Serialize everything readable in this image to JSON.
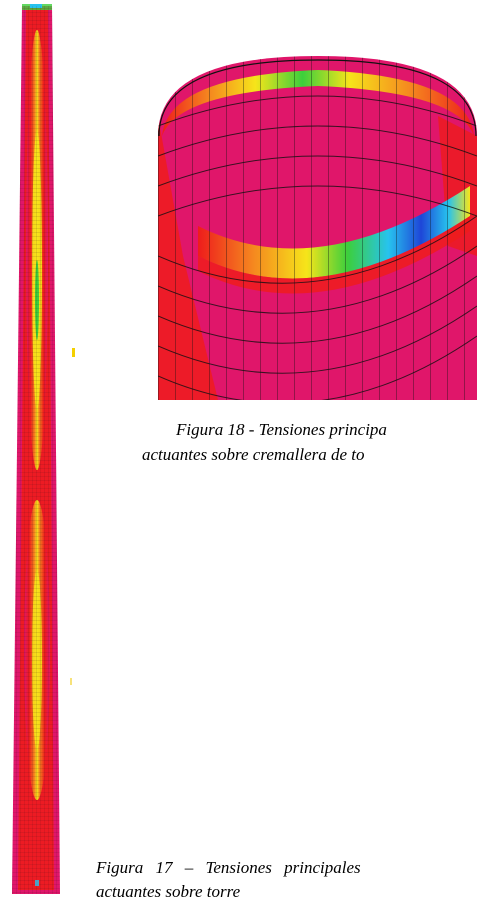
{
  "figures": {
    "tower": {
      "icon": "tower-stress-plot"
    },
    "rack": {
      "icon": "rack-ring-stress-plot"
    }
  },
  "captions": {
    "fig18_line1": "Figura 18 - Tensiones principa",
    "fig18_line2": "actuantes sobre cremallera de to",
    "fig17_line1": "Figura 17 – Tensiones principales",
    "fig17_line2": "actuantes sobre torre"
  },
  "colors": {
    "magenta": "#e0166a",
    "red": "#ee1c1c",
    "orange": "#f5861f",
    "yellow": "#f6e51a",
    "green": "#3ccf3c",
    "cyan": "#27c3ee",
    "blue": "#1e46d8"
  }
}
